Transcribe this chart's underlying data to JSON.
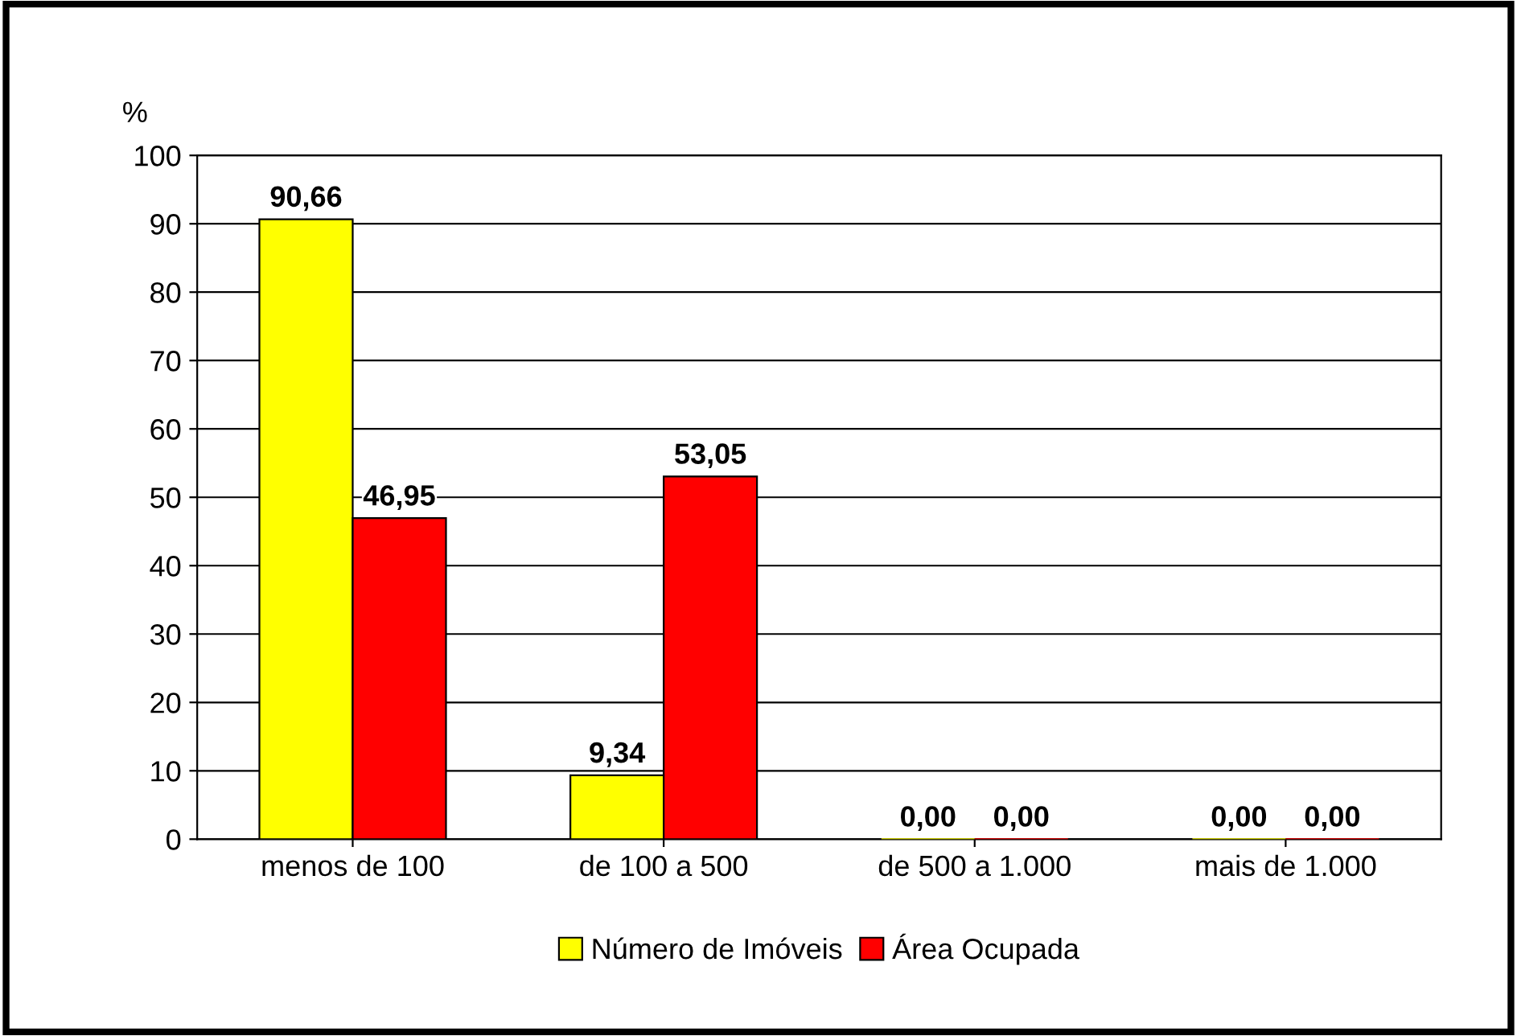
{
  "chart_data": {
    "type": "bar",
    "ylabel": "%",
    "categories": [
      "menos de 100",
      "de 100 a 500",
      "de 500 a 1.000",
      "mais de 1.000"
    ],
    "series": [
      {
        "name": "Número de Imóveis",
        "color": "#ffff00",
        "values": [
          90.66,
          9.34,
          0,
          0
        ],
        "value_labels": [
          "90,66",
          "9,34",
          "0,00",
          "0,00"
        ]
      },
      {
        "name": "Área Ocupada",
        "color": "#ff0000",
        "values": [
          46.95,
          53.05,
          0,
          0
        ],
        "value_labels": [
          "46,95",
          "53,05",
          "0,00",
          "0,00"
        ]
      }
    ],
    "ylim": [
      0,
      100
    ],
    "yticks": [
      0,
      10,
      20,
      30,
      40,
      50,
      60,
      70,
      80,
      90,
      100
    ],
    "grid": "y",
    "legend": "bottom"
  }
}
